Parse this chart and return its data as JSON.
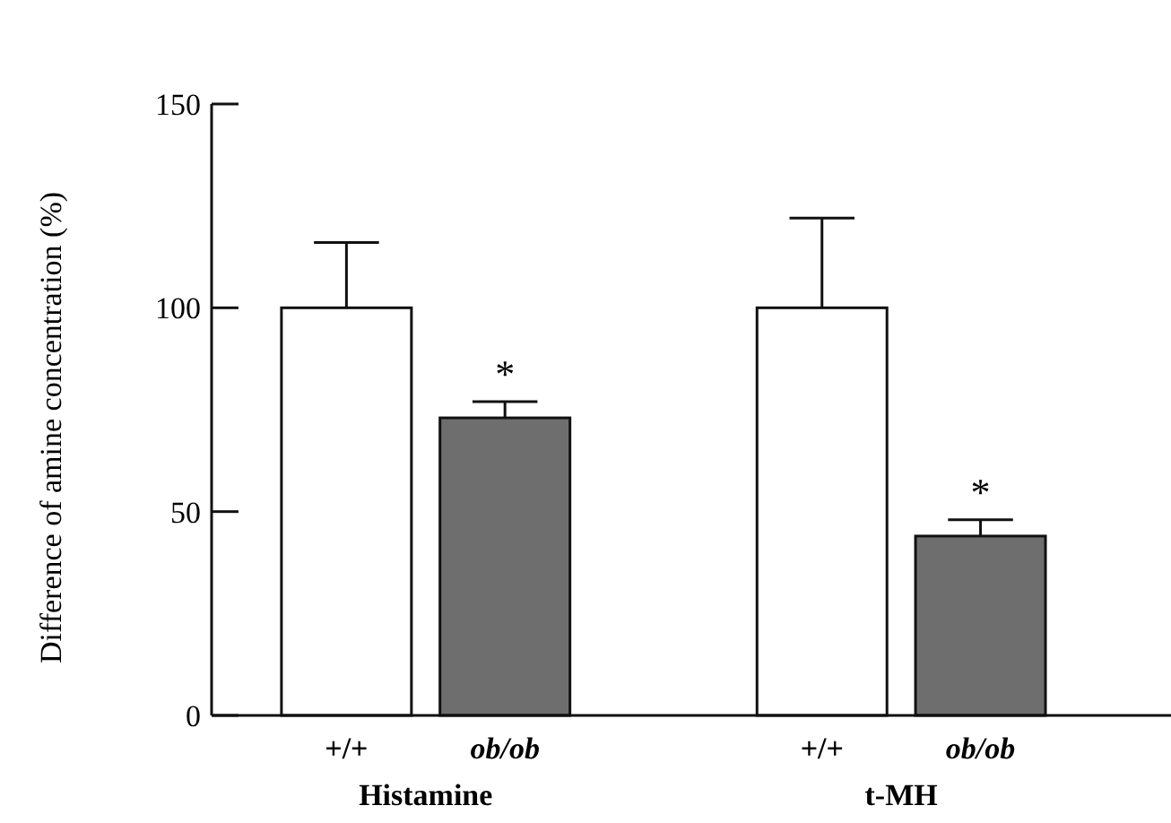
{
  "chart_data": {
    "type": "bar",
    "ylabel": "Difference of amine concentration (%)",
    "categories": [
      "+/+",
      "ob/ob",
      "+/+",
      "ob/ob"
    ],
    "values": [
      100,
      73,
      100,
      44
    ],
    "colors": [
      "#ffffff",
      "#6e6e6e",
      "#ffffff",
      "#6e6e6e"
    ],
    "errors": [
      [
        100,
        116
      ],
      [
        73,
        77
      ],
      [
        100,
        122
      ],
      [
        44,
        48
      ]
    ],
    "value_labels": [
      null,
      "*",
      null,
      "*"
    ],
    "annotations": [
      "Histamine",
      "t-MH"
    ],
    "ylim": [
      0,
      150
    ],
    "yticks": [
      0,
      50,
      100,
      150
    ],
    "grid": false
  }
}
